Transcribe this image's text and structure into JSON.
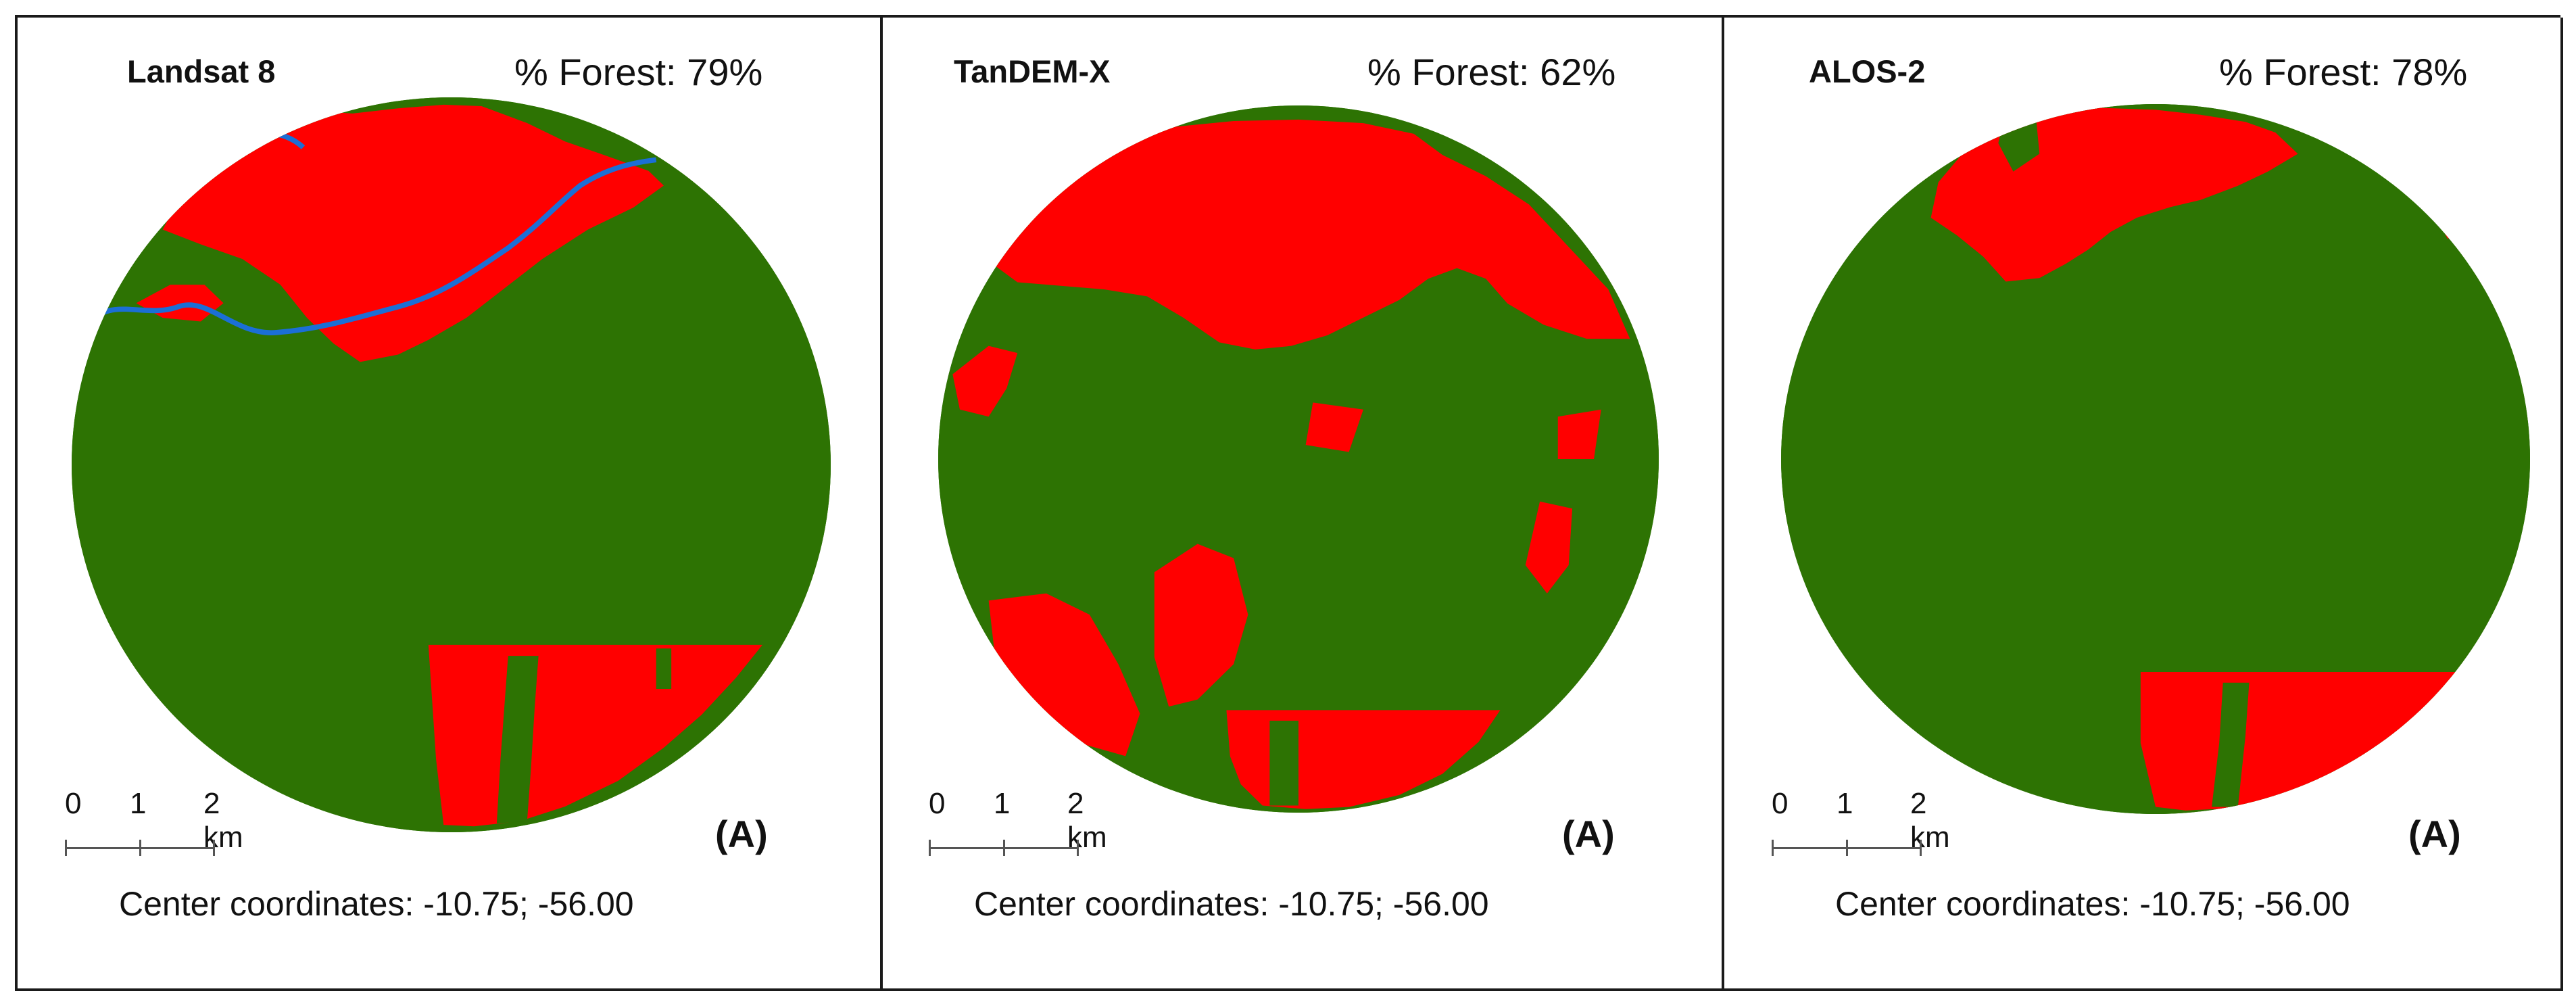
{
  "colors": {
    "forest": "#2d7303",
    "non_forest": "#ff0000",
    "river": "#1b6fd6",
    "border": "#1a1a1a"
  },
  "legend": {
    "scale_labels": [
      "0",
      "1",
      "2 km"
    ]
  },
  "panels": [
    {
      "title": "Landsat 8",
      "forest_text": "% Forest: 79%",
      "panel_letter": "(A)",
      "coords_text": "Center coordinates: -10.75; -56.00"
    },
    {
      "title": "TanDEM-X",
      "forest_text": "% Forest: 62%",
      "panel_letter": "(A)",
      "coords_text": "Center coordinates: -10.75; -56.00"
    },
    {
      "title": "ALOS-2",
      "forest_text": "% Forest: 78%",
      "panel_letter": "(A)",
      "coords_text": "Center coordinates: -10.75; -56.00"
    }
  ]
}
